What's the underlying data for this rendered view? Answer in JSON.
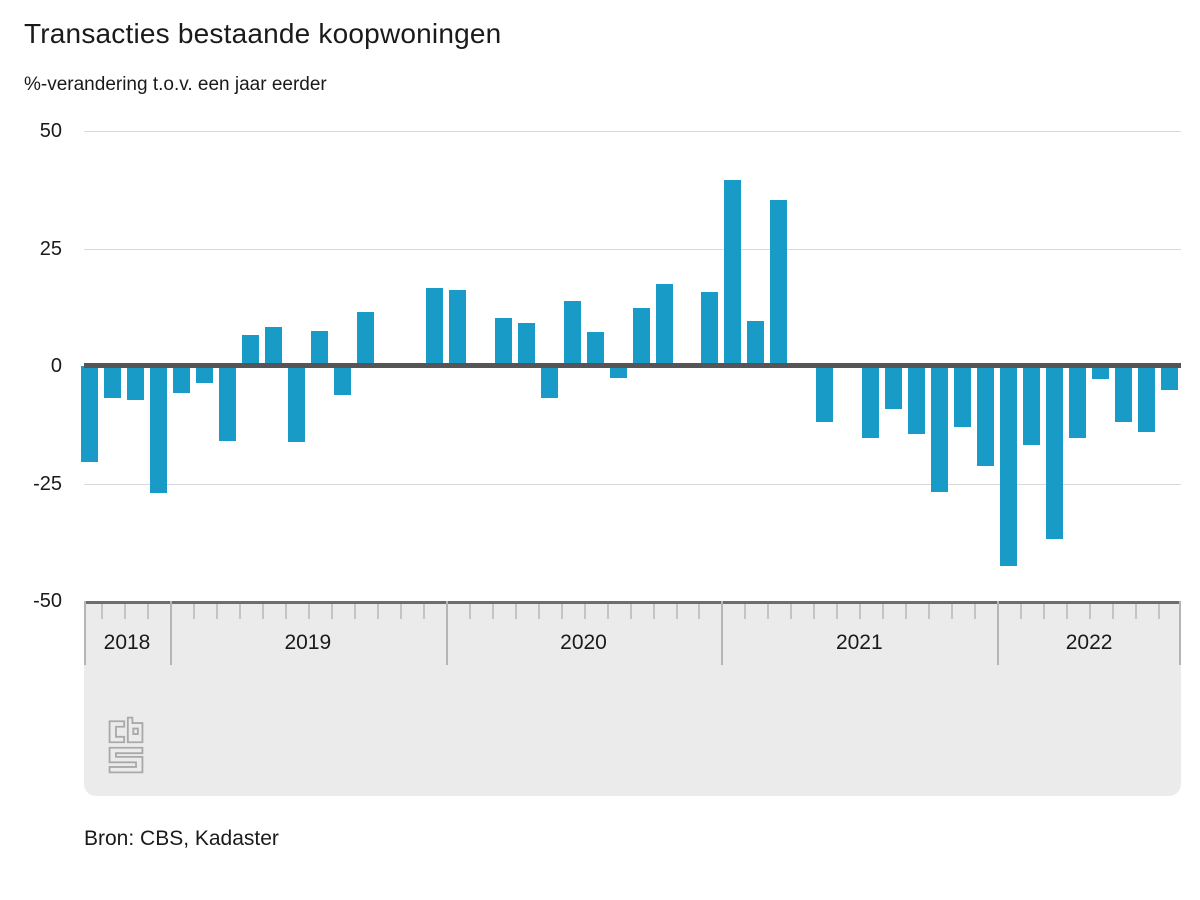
{
  "page": {
    "title": "Transacties bestaande koopwoningen",
    "subtitle": "%-verandering t.o.v. een jaar eerder",
    "source": "Bron: CBS, Kadaster"
  },
  "colors": {
    "bar": "#189cc7",
    "zero_line": "#555557",
    "grid_line": "#d9d9d9",
    "axis_band": "#ebebeb",
    "band_top_line": "#6e6e6e",
    "month_tick": "#c4c4c4",
    "year_separator": "#b5b5b5",
    "text": "#1a1a1a",
    "logo_outline": "#a9a9a9"
  },
  "y_axis": {
    "ticks": [
      "50",
      "25",
      "0",
      "-25",
      "-50"
    ],
    "tick_values": [
      50,
      25,
      0,
      -25,
      -50
    ]
  },
  "x_axis": {
    "years": [
      {
        "label": "2018",
        "months": 4
      },
      {
        "label": "2019",
        "months": 12
      },
      {
        "label": "2020",
        "months": 12
      },
      {
        "label": "2021",
        "months": 12
      },
      {
        "label": "2022",
        "months": 8
      }
    ]
  },
  "chart_data": {
    "type": "bar",
    "title": "Transacties bestaande koopwoningen",
    "ylabel": "%-verandering t.o.v. een jaar eerder",
    "ylim": [
      -50,
      50
    ],
    "grid": "horizontal",
    "legend": "none",
    "x_unit": "month",
    "x": [
      "2018-09",
      "2018-10",
      "2018-11",
      "2018-12",
      "2019-01",
      "2019-02",
      "2019-03",
      "2019-04",
      "2019-05",
      "2019-06",
      "2019-07",
      "2019-08",
      "2019-09",
      "2019-10",
      "2019-11",
      "2019-12",
      "2020-01",
      "2020-02",
      "2020-03",
      "2020-04",
      "2020-05",
      "2020-06",
      "2020-07",
      "2020-08",
      "2020-09",
      "2020-10",
      "2020-11",
      "2020-12",
      "2021-01",
      "2021-02",
      "2021-03",
      "2021-04",
      "2021-05",
      "2021-06",
      "2021-07",
      "2021-08",
      "2021-09",
      "2021-10",
      "2021-11",
      "2021-12",
      "2022-01",
      "2022-02",
      "2022-03",
      "2022-04",
      "2022-05",
      "2022-06",
      "2022-07",
      "2022-08"
    ],
    "values": [
      -20.4,
      -6.7,
      -7.3,
      -27.1,
      -5.7,
      -3.7,
      -15.9,
      6.7,
      8.3,
      -16.2,
      7.4,
      -6.1,
      11.4,
      0,
      0,
      16.6,
      16.1,
      0,
      10.3,
      9.1,
      -6.8,
      13.9,
      7.3,
      -2.5,
      12.3,
      17.4,
      0.6,
      15.8,
      39.5,
      9.5,
      35.4,
      0.6,
      -11.9,
      0,
      -15.3,
      -9.1,
      -14.4,
      -26.7,
      -12.9,
      -21.3,
      -42.5,
      -16.7,
      -36.8,
      -15.4,
      -2.8,
      -11.8,
      -14,
      -5
    ],
    "source": "Bron: CBS, Kadaster"
  }
}
